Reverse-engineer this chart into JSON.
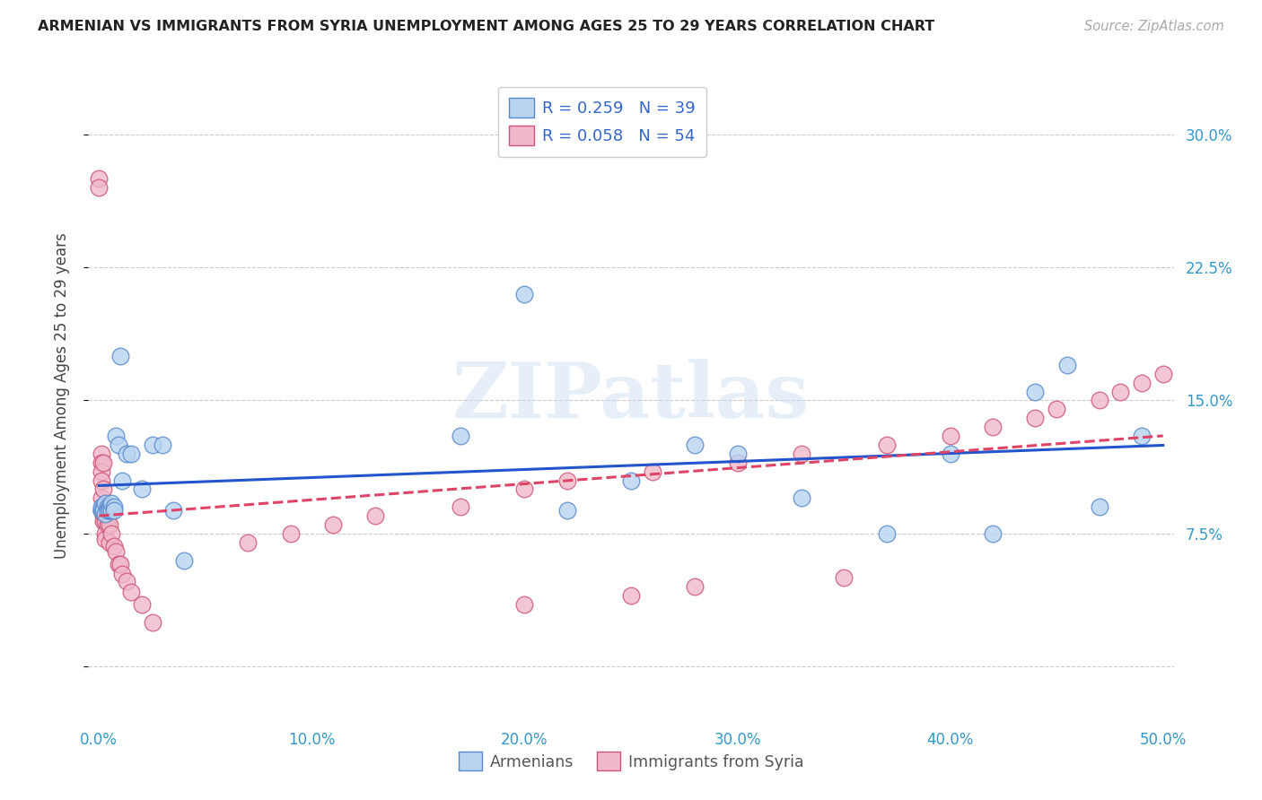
{
  "title": "ARMENIAN VS IMMIGRANTS FROM SYRIA UNEMPLOYMENT AMONG AGES 25 TO 29 YEARS CORRELATION CHART",
  "source": "Source: ZipAtlas.com",
  "ylabel": "Unemployment Among Ages 25 to 29 years",
  "watermark": "ZIPatlas",
  "xlim": [
    -0.005,
    0.505
  ],
  "ylim": [
    -0.03,
    0.335
  ],
  "xticks": [
    0.0,
    0.1,
    0.2,
    0.3,
    0.4,
    0.5
  ],
  "xticklabels": [
    "0.0%",
    "10.0%",
    "20.0%",
    "30.0%",
    "40.0%",
    "50.0%"
  ],
  "yticks": [
    0.0,
    0.075,
    0.15,
    0.225,
    0.3
  ],
  "yticklabels": [
    "",
    "7.5%",
    "15.0%",
    "22.5%",
    "30.0%"
  ],
  "armenian_color": "#b8d4f0",
  "armenia_edge_color": "#5588cc",
  "syria_color": "#f0b8c8",
  "syria_edge_color": "#cc5577",
  "trend_blue": "#2255cc",
  "trend_pink": "#dd4466",
  "legend_label_armenian": "Armenians",
  "legend_label_syria": "Immigrants from Syria",
  "armenian_x": [
    0.001,
    0.001,
    0.002,
    0.002,
    0.003,
    0.003,
    0.004,
    0.004,
    0.005,
    0.005,
    0.006,
    0.006,
    0.007,
    0.007,
    0.008,
    0.009,
    0.01,
    0.011,
    0.013,
    0.015,
    0.02,
    0.025,
    0.03,
    0.035,
    0.04,
    0.17,
    0.2,
    0.22,
    0.25,
    0.28,
    0.3,
    0.33,
    0.37,
    0.4,
    0.42,
    0.44,
    0.455,
    0.47,
    0.49
  ],
  "armenian_y": [
    0.088,
    0.09,
    0.09,
    0.088,
    0.086,
    0.092,
    0.09,
    0.088,
    0.09,
    0.088,
    0.088,
    0.092,
    0.09,
    0.088,
    0.13,
    0.125,
    0.175,
    0.105,
    0.12,
    0.12,
    0.1,
    0.125,
    0.125,
    0.088,
    0.06,
    0.13,
    0.21,
    0.088,
    0.105,
    0.125,
    0.12,
    0.095,
    0.075,
    0.12,
    0.075,
    0.155,
    0.17,
    0.09,
    0.13
  ],
  "syria_x": [
    0.0,
    0.0,
    0.001,
    0.001,
    0.001,
    0.001,
    0.001,
    0.001,
    0.002,
    0.002,
    0.002,
    0.002,
    0.002,
    0.003,
    0.003,
    0.003,
    0.003,
    0.004,
    0.004,
    0.005,
    0.005,
    0.006,
    0.007,
    0.008,
    0.009,
    0.01,
    0.011,
    0.013,
    0.015,
    0.02,
    0.025,
    0.07,
    0.09,
    0.11,
    0.13,
    0.17,
    0.2,
    0.22,
    0.26,
    0.3,
    0.33,
    0.37,
    0.4,
    0.42,
    0.44,
    0.45,
    0.47,
    0.48,
    0.49,
    0.5,
    0.2,
    0.25,
    0.28,
    0.35
  ],
  "syria_y": [
    0.275,
    0.27,
    0.12,
    0.115,
    0.11,
    0.105,
    0.095,
    0.088,
    0.115,
    0.1,
    0.09,
    0.085,
    0.082,
    0.085,
    0.082,
    0.075,
    0.072,
    0.09,
    0.08,
    0.08,
    0.07,
    0.075,
    0.068,
    0.065,
    0.058,
    0.058,
    0.052,
    0.048,
    0.042,
    0.035,
    0.025,
    0.07,
    0.075,
    0.08,
    0.085,
    0.09,
    0.1,
    0.105,
    0.11,
    0.115,
    0.12,
    0.125,
    0.13,
    0.135,
    0.14,
    0.145,
    0.15,
    0.155,
    0.16,
    0.165,
    0.035,
    0.04,
    0.045,
    0.05
  ]
}
